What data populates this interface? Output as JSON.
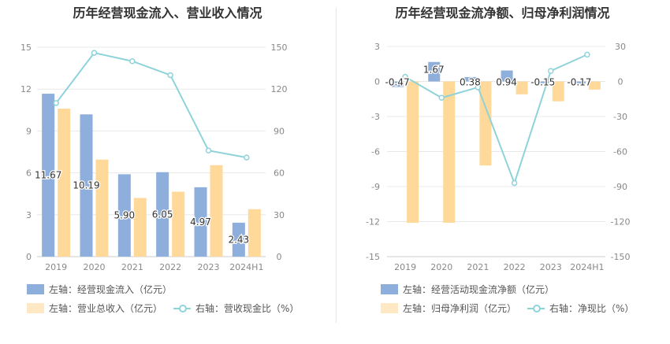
{
  "colors": {
    "bar1": "#8eaedc",
    "bar2": "#ffd999",
    "line": "#8fd3da",
    "grid": "#e8e8e8",
    "axis": "#888888"
  },
  "chart_data": [
    {
      "type": "bar",
      "title": "历年经营现金流入、营业收入情况",
      "categories": [
        "2019",
        "2020",
        "2021",
        "2022",
        "2023",
        "2024H1"
      ],
      "left_axis": {
        "ylim": [
          0,
          15
        ],
        "ticks": [
          "0",
          "3",
          "6",
          "9",
          "12",
          "15"
        ]
      },
      "right_axis": {
        "ylim": [
          0,
          150
        ],
        "ticks": [
          "0",
          "30",
          "60",
          "90",
          "120",
          "150"
        ]
      },
      "series": [
        {
          "name": "左轴：经营现金流入（亿元）",
          "type": "bar",
          "axis": "left",
          "values": [
            11.67,
            10.19,
            5.9,
            6.05,
            4.97,
            2.43
          ],
          "labels": [
            "11.67",
            "10.19",
            "5.90",
            "6.05",
            "4.97",
            "2.43"
          ]
        },
        {
          "name": "左轴：营业总收入（亿元）",
          "type": "bar",
          "axis": "left",
          "values": [
            10.6,
            6.95,
            4.2,
            4.65,
            6.55,
            3.4
          ]
        },
        {
          "name": "右轴：营收现金比（%）",
          "type": "line",
          "axis": "right",
          "values": [
            110,
            146,
            140,
            130,
            76,
            71
          ]
        }
      ]
    },
    {
      "type": "bar",
      "title": "历年经营现金流净额、归母净利润情况",
      "categories": [
        "2019",
        "2020",
        "2021",
        "2022",
        "2023",
        "2024H1"
      ],
      "left_axis": {
        "ylim": [
          -15,
          3
        ],
        "ticks": [
          "3",
          "0",
          "-3",
          "-6",
          "-9",
          "-12",
          "-15"
        ]
      },
      "right_axis": {
        "ylim": [
          -150,
          30
        ],
        "ticks": [
          "30",
          "0",
          "-30",
          "-60",
          "-90",
          "-120",
          "-150"
        ]
      },
      "series": [
        {
          "name": "左轴：经营活动现金流净额（亿元）",
          "type": "bar",
          "axis": "left",
          "values": [
            -0.47,
            1.67,
            0.38,
            0.94,
            -0.15,
            -0.17
          ],
          "labels": [
            "-0.47",
            "1.67",
            "0.38",
            "0.94",
            "-0.15",
            "-0.17"
          ]
        },
        {
          "name": "左轴：归母净利润（亿元）",
          "type": "bar",
          "axis": "left",
          "values": [
            -12.1,
            -12.1,
            -7.2,
            -1.1,
            -1.7,
            -0.7
          ]
        },
        {
          "name": "右轴：净现比（%）",
          "type": "line",
          "axis": "right",
          "values": [
            4,
            -14,
            -5,
            -87,
            9,
            23
          ]
        }
      ]
    }
  ]
}
